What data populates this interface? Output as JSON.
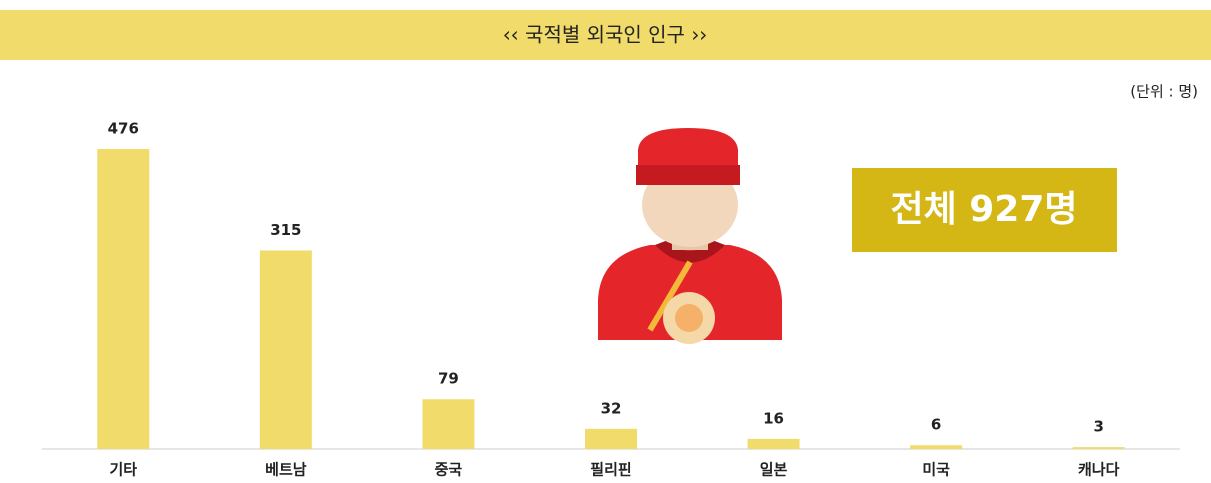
{
  "chart_data": {
    "type": "bar",
    "title": "‹‹ 국적별 외국인 인구 ››",
    "unit_label": "(단위 : 명)",
    "total_label": "전체 927명",
    "categories": [
      "기타",
      "베트남",
      "중국",
      "필리핀",
      "일본",
      "미국",
      "캐나다"
    ],
    "values": [
      476,
      315,
      79,
      32,
      16,
      6,
      3
    ],
    "color": "#f1dc6b"
  }
}
